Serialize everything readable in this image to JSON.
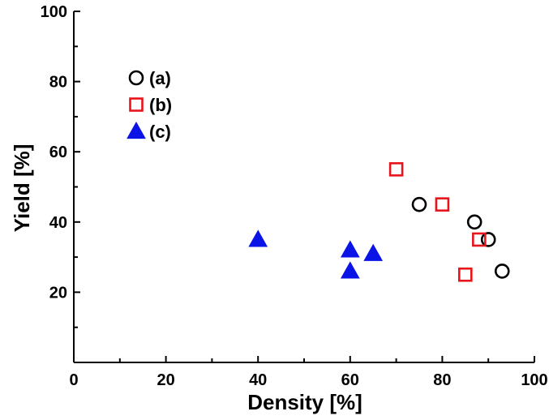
{
  "chart_data": {
    "type": "scatter",
    "title": "",
    "xlabel": "Density [%]",
    "ylabel": "Yield [%]",
    "xlim": [
      0,
      100
    ],
    "ylim": [
      0,
      100
    ],
    "xticks": [
      0,
      20,
      40,
      60,
      80,
      100
    ],
    "yticks": [
      20,
      40,
      60,
      80,
      100
    ],
    "xtick_labels": [
      "0",
      "20",
      "40",
      "60",
      "80",
      "100"
    ],
    "ytick_labels": [
      "20",
      "40",
      "60",
      "80",
      "100"
    ],
    "grid": false,
    "legend_position": "top-left",
    "series": [
      {
        "name": "(a)",
        "marker": "circle-open",
        "color": "#000000",
        "points": [
          [
            75,
            45
          ],
          [
            87,
            40
          ],
          [
            90,
            35
          ],
          [
            93,
            26
          ]
        ]
      },
      {
        "name": "(b)",
        "marker": "square-open",
        "color": "#e8141c",
        "points": [
          [
            70,
            55
          ],
          [
            80,
            45
          ],
          [
            88,
            35
          ],
          [
            85,
            25
          ]
        ]
      },
      {
        "name": "(c)",
        "marker": "triangle-filled",
        "color": "#0a14e6",
        "points": [
          [
            40,
            35
          ],
          [
            60,
            32
          ],
          [
            60,
            26
          ],
          [
            65,
            31
          ]
        ]
      }
    ]
  }
}
